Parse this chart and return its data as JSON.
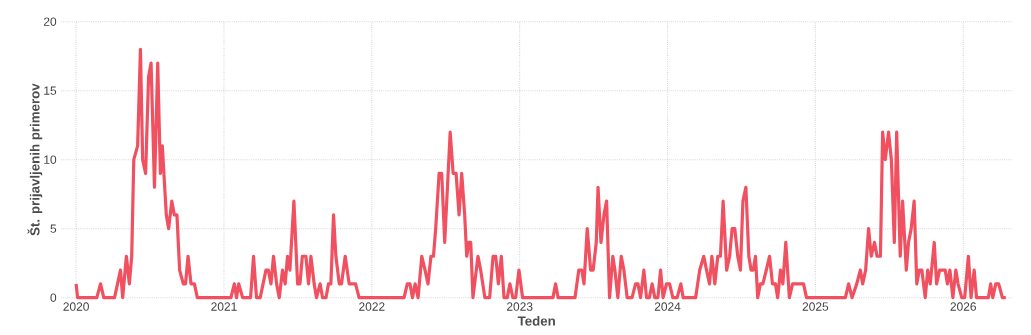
{
  "chart_data": {
    "type": "line",
    "xlabel": "Teden",
    "ylabel": "Št. prijavljenih primerov",
    "xlim": [
      2019.9,
      2026.33
    ],
    "ylim": [
      0,
      20
    ],
    "xticks": [
      2020,
      2021,
      2022,
      2023,
      2024,
      2025,
      2026
    ],
    "yticks": [
      0,
      5,
      10,
      15,
      20
    ],
    "grid": true,
    "marker": "none",
    "line_style": "solid",
    "series": [
      {
        "color": "#f0505f",
        "x": [
          2020.0,
          2020.01,
          2020.14,
          2020.165,
          2020.187,
          2020.26,
          2020.3,
          2020.315,
          2020.34,
          2020.36,
          2020.376,
          2020.39,
          2020.416,
          2020.435,
          2020.45,
          2020.47,
          2020.49,
          2020.507,
          2020.53,
          2020.552,
          2020.57,
          2020.583,
          2020.61,
          2020.626,
          2020.647,
          2020.664,
          2020.682,
          2020.7,
          2020.725,
          2020.74,
          2020.757,
          2020.777,
          2020.8,
          2020.82,
          2021.047,
          2021.07,
          2021.085,
          2021.1,
          2021.126,
          2021.18,
          2021.2,
          2021.22,
          2021.245,
          2021.284,
          2021.3,
          2021.318,
          2021.335,
          2021.356,
          2021.374,
          2021.396,
          2021.414,
          2021.43,
          2021.446,
          2021.473,
          2021.498,
          2021.514,
          2021.53,
          2021.554,
          2021.572,
          2021.588,
          2021.61,
          2021.626,
          2021.65,
          2021.667,
          2021.69,
          2021.707,
          2021.723,
          2021.741,
          2021.757,
          2021.78,
          2021.795,
          2021.82,
          2021.847,
          2021.863,
          2021.89,
          2021.914,
          2022.218,
          2022.24,
          2022.258,
          2022.275,
          2022.293,
          2022.313,
          2022.338,
          2022.36,
          2022.38,
          2022.4,
          2022.417,
          2022.432,
          2022.455,
          2022.473,
          2022.493,
          2022.53,
          2022.55,
          2022.57,
          2022.59,
          2022.608,
          2022.628,
          2022.642,
          2022.657,
          2022.669,
          2022.684,
          2022.718,
          2022.736,
          2022.765,
          2022.797,
          2022.82,
          2022.838,
          2022.856,
          2022.876,
          2022.894,
          2022.916,
          2022.934,
          2022.954,
          2022.973,
          2022.995,
          2023.02,
          2023.225,
          2023.243,
          2023.26,
          2023.374,
          2023.4,
          2023.42,
          2023.435,
          2023.457,
          2023.48,
          2023.497,
          2023.518,
          2023.53,
          2023.55,
          2023.57,
          2023.588,
          2023.608,
          2023.63,
          2023.644,
          2023.664,
          2023.687,
          2023.705,
          2023.727,
          2023.76,
          2023.784,
          2023.8,
          2023.818,
          2023.84,
          2023.858,
          2023.877,
          2023.896,
          2023.914,
          2023.935,
          2023.953,
          2023.97,
          2023.993,
          2024.014,
          2024.036,
          2024.065,
          2024.09,
          2024.106,
          2024.19,
          2024.218,
          2024.245,
          2024.264,
          2024.284,
          2024.3,
          2024.32,
          2024.34,
          2024.358,
          2024.376,
          2024.4,
          2024.42,
          2024.437,
          2024.455,
          2024.475,
          2024.493,
          2024.51,
          2024.53,
          2024.55,
          2024.565,
          2024.58,
          2024.595,
          2024.61,
          2024.628,
          2024.645,
          2024.668,
          2024.69,
          2024.71,
          2024.73,
          2024.745,
          2024.764,
          2024.78,
          2024.8,
          2024.824,
          2024.846,
          2024.92,
          2024.94,
          2025.203,
          2025.225,
          2025.248,
          2025.28,
          2025.304,
          2025.32,
          2025.34,
          2025.36,
          2025.378,
          2025.4,
          2025.417,
          2025.44,
          2025.455,
          2025.473,
          2025.495,
          2025.514,
          2025.534,
          2025.55,
          2025.574,
          2025.59,
          2025.615,
          2025.63,
          2025.648,
          2025.668,
          2025.686,
          2025.703,
          2025.72,
          2025.743,
          2025.76,
          2025.777,
          2025.804,
          2025.82,
          2025.84,
          2025.878,
          2025.893,
          2025.91,
          2025.93,
          2025.95,
          2025.965,
          2025.99,
          2026.01,
          2026.035,
          2026.053,
          2026.074,
          2026.09,
          2026.17,
          2026.186,
          2026.2,
          2026.22,
          2026.24,
          2026.265,
          2026.288
        ],
        "values": [
          1,
          0,
          0,
          1,
          0,
          0,
          2,
          0,
          3,
          1,
          3,
          10,
          11,
          18,
          10,
          9,
          16,
          17,
          8,
          17,
          9,
          11,
          6,
          5,
          7,
          6,
          6,
          2,
          1,
          1,
          3,
          1,
          1,
          0,
          0,
          1,
          0,
          1,
          0,
          0,
          3,
          0,
          0,
          2,
          2,
          1,
          3,
          1,
          0,
          2,
          1,
          3,
          2,
          7,
          1,
          1,
          3,
          3,
          1,
          3,
          1,
          0,
          1,
          0,
          0,
          1,
          1,
          6,
          3,
          1,
          1,
          3,
          1,
          1,
          1,
          0,
          0,
          1,
          1,
          0,
          1,
          0,
          3,
          2,
          1,
          3,
          3,
          5,
          9,
          9,
          4,
          12,
          9,
          9,
          6,
          9,
          6,
          3,
          4,
          4,
          0,
          3,
          2,
          0,
          0,
          3,
          3,
          1,
          3,
          0,
          0,
          1,
          0,
          0,
          2,
          0,
          0,
          1,
          0,
          0,
          2,
          2,
          1,
          5,
          2,
          2,
          4,
          8,
          4,
          6,
          7,
          0,
          3,
          2,
          0,
          3,
          2,
          0,
          0,
          1,
          1,
          0,
          2,
          0,
          0,
          1,
          0,
          0,
          2,
          0,
          1,
          1,
          0,
          0,
          1,
          0,
          0,
          2,
          3,
          2,
          1,
          3,
          1,
          3,
          3,
          7,
          2,
          3,
          5,
          5,
          3,
          2,
          7,
          8,
          3,
          2,
          2,
          3,
          0,
          1,
          1,
          2,
          3,
          1,
          1,
          0,
          2,
          1,
          4,
          0,
          1,
          1,
          0,
          0,
          1,
          0,
          1,
          2,
          1,
          2,
          5,
          3,
          4,
          3,
          3,
          12,
          10,
          12,
          10,
          4,
          12,
          3,
          7,
          2,
          4,
          5,
          7,
          1,
          2,
          2,
          0,
          2,
          1,
          4,
          1,
          2,
          2,
          1,
          2,
          0,
          2,
          1,
          0,
          0,
          3,
          0,
          2,
          0,
          0,
          1,
          0,
          1,
          1,
          0,
          0
        ]
      }
    ]
  }
}
